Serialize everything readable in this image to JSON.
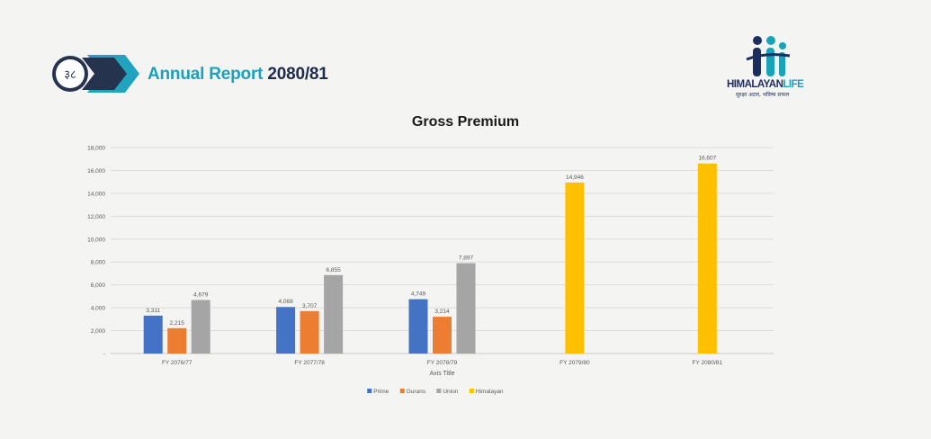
{
  "header": {
    "page_number": "३८",
    "report_title": "Annual Report",
    "report_year": "2080/81",
    "logo_name": "HIMALAYAN",
    "logo_name_suffix": "LIFE",
    "logo_tagline": "सुरक्षा अटल, भविष्य सफल"
  },
  "colors": {
    "teal": "#1aa1bd",
    "navy": "#1f2a4d",
    "prime": "#4472c4",
    "gurans": "#ed7d31",
    "union": "#a5a5a5",
    "himalayan": "#ffc000"
  },
  "chart_data": {
    "type": "bar",
    "title": "Gross Premium",
    "xlabel": "Axis Title",
    "ylabel": "",
    "ylim": [
      0,
      18000
    ],
    "ytick_step": 2000,
    "ytick_labels": [
      "-",
      "2,000",
      "4,000",
      "6,000",
      "8,000",
      "10,000",
      "12,000",
      "14,000",
      "16,000",
      "18,000"
    ],
    "grid": true,
    "legend_position": "bottom",
    "categories": [
      "FY 2076/77",
      "FY 2077/78",
      "FY 2078/79",
      "FY 2079/80",
      "FY 2080/81"
    ],
    "series": [
      {
        "name": "Prime",
        "color": "#4472c4",
        "values": [
          3311,
          4068,
          4749,
          null,
          null
        ],
        "labels": [
          "3,311",
          "4,068",
          "4,749",
          "",
          ""
        ]
      },
      {
        "name": "Gurans",
        "color": "#ed7d31",
        "values": [
          2215,
          3707,
          3214,
          null,
          null
        ],
        "labels": [
          "2,215",
          "3,707",
          "3,214",
          "",
          ""
        ]
      },
      {
        "name": "Union",
        "color": "#a5a5a5",
        "values": [
          4679,
          6855,
          7897,
          null,
          null
        ],
        "labels": [
          "4,679",
          "6,855",
          "7,897",
          "",
          ""
        ]
      },
      {
        "name": "Himalayan",
        "color": "#ffc000",
        "values": [
          null,
          null,
          null,
          14946,
          16607
        ],
        "labels": [
          "",
          "",
          "",
          "14,946",
          "16,607"
        ]
      }
    ]
  }
}
